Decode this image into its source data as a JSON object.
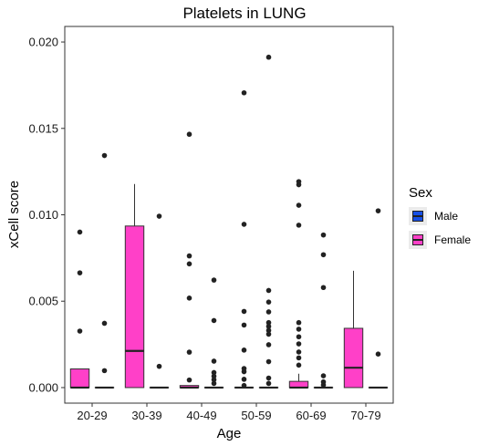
{
  "chart_data": {
    "type": "box",
    "title": "Platelets in LUNG",
    "xlabel": "Age",
    "ylabel": "xCell score",
    "categories": [
      "20-29",
      "30-39",
      "40-49",
      "50-59",
      "60-69",
      "70-79"
    ],
    "ylim": [
      -0.0009,
      0.0209
    ],
    "yticks": [
      0.0,
      0.005,
      0.01,
      0.015,
      0.02
    ],
    "ytick_labels": [
      "0.000",
      "0.005",
      "0.010",
      "0.015",
      "0.020"
    ],
    "grid": false,
    "legend": {
      "title": "Sex",
      "placement": "right",
      "entries": [
        {
          "label": "Male",
          "color": "#1750e6"
        },
        {
          "label": "Female",
          "color": "#ff40c8"
        }
      ]
    },
    "series": [
      {
        "name": "Female",
        "color": "#ff40c8",
        "boxes": [
          {
            "category": "20-29",
            "q1": 0.0,
            "median": 0.0,
            "q3": 0.00108,
            "whisker_low": 0.0,
            "whisker_high": 0.00108,
            "outliers": [
              0.009,
              0.00664,
              0.00327
            ]
          },
          {
            "category": "30-39",
            "q1": 0.0,
            "median": 0.00212,
            "q3": 0.00935,
            "whisker_low": 0.0,
            "whisker_high": 0.01178,
            "outliers": []
          },
          {
            "category": "40-49",
            "q1": 0.0,
            "median": 0.0,
            "q3": 0.00012,
            "whisker_low": 0.0,
            "whisker_high": 0.00012,
            "outliers": [
              0.01466,
              0.00762,
              0.00716,
              0.00518,
              0.00205,
              0.00044
            ]
          },
          {
            "category": "50-59",
            "q1": 0.0,
            "median": 0.0,
            "q3": 0.0,
            "whisker_low": 0.0,
            "whisker_high": 0.0,
            "outliers": [
              0.01706,
              0.00945,
              0.00441,
              0.00362,
              0.00217,
              0.0011,
              0.00092,
              0.00048,
              0.00012
            ]
          },
          {
            "category": "60-69",
            "q1": 0.0,
            "median": 0.0,
            "q3": 0.00036,
            "whisker_low": 0.0,
            "whisker_high": 0.0008,
            "outliers": [
              0.01192,
              0.01174,
              0.01055,
              0.0094,
              0.00376,
              0.00338,
              0.00294,
              0.00253,
              0.00206,
              0.00172,
              0.0013
            ]
          },
          {
            "category": "70-79",
            "q1": 0.0,
            "median": 0.00115,
            "q3": 0.00343,
            "whisker_low": 0.0,
            "whisker_high": 0.00676,
            "outliers": []
          }
        ]
      },
      {
        "name": "Male",
        "color": "#1750e6",
        "boxes": [
          {
            "category": "20-29",
            "q1": 0.0,
            "median": 0.0,
            "q3": 0.0,
            "whisker_low": 0.0,
            "whisker_high": 0.0,
            "outliers": [
              0.01343,
              0.00372,
              0.00098
            ]
          },
          {
            "category": "30-39",
            "q1": 0.0,
            "median": 0.0,
            "q3": 0.0,
            "whisker_low": 0.0,
            "whisker_high": 0.0,
            "outliers": [
              0.00992,
              0.00123
            ]
          },
          {
            "category": "40-49",
            "q1": 0.0,
            "median": 0.0,
            "q3": 0.0,
            "whisker_low": 0.0,
            "whisker_high": 0.0,
            "outliers": [
              0.00622,
              0.00388,
              0.00153,
              0.00087,
              0.00066,
              0.00046,
              0.00024
            ]
          },
          {
            "category": "50-59",
            "q1": 0.0,
            "median": 0.0,
            "q3": 0.0,
            "whisker_low": 0.0,
            "whisker_high": 0.0,
            "outliers": [
              0.01912,
              0.00562,
              0.00495,
              0.00438,
              0.00376,
              0.00354,
              0.00331,
              0.00309,
              0.00248,
              0.0015,
              0.00055,
              0.00024
            ]
          },
          {
            "category": "60-69",
            "q1": 0.0,
            "median": 0.0,
            "q3": 0.0,
            "whisker_low": 0.0,
            "whisker_high": 0.0,
            "outliers": [
              0.00883,
              0.00769,
              0.00579,
              0.00068,
              0.00033,
              0.00015
            ]
          },
          {
            "category": "70-79",
            "q1": 0.0,
            "median": 0.0,
            "q3": 0.0,
            "whisker_low": 0.0,
            "whisker_high": 0.0,
            "outliers": [
              0.01023,
              0.00194
            ]
          }
        ]
      }
    ]
  }
}
